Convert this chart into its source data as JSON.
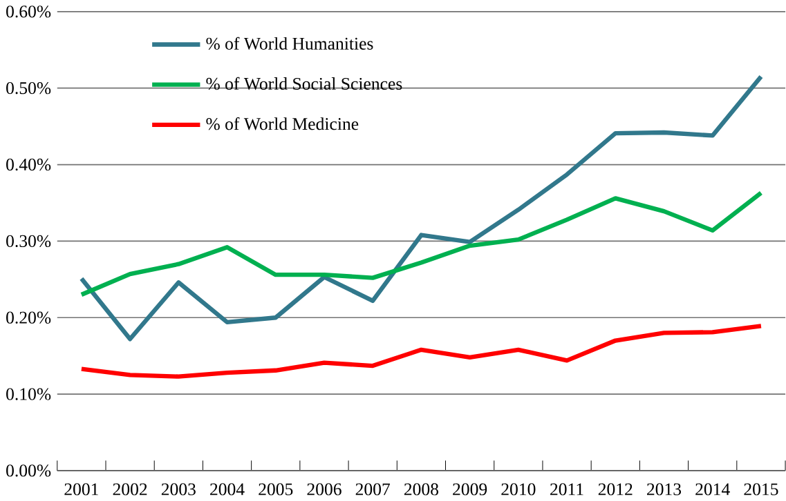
{
  "chart_data": {
    "type": "line",
    "categories": [
      "2001",
      "2002",
      "2003",
      "2004",
      "2005",
      "2006",
      "2007",
      "2008",
      "2009",
      "2010",
      "2011",
      "2012",
      "2013",
      "2014",
      "2015"
    ],
    "series": [
      {
        "name": "% of World Humanities",
        "color": "#31788c",
        "values": [
          0.251,
          0.172,
          0.246,
          0.194,
          0.2,
          0.253,
          0.222,
          0.308,
          0.299,
          0.341,
          0.387,
          0.441,
          0.442,
          0.438,
          0.515
        ]
      },
      {
        "name": "% of World Social Sciences",
        "color": "#00b050",
        "values": [
          0.23,
          0.257,
          0.27,
          0.292,
          0.256,
          0.256,
          0.252,
          0.272,
          0.294,
          0.302,
          0.328,
          0.356,
          0.339,
          0.314,
          0.363
        ]
      },
      {
        "name": "% of World Medicine",
        "color": "#ff0000",
        "values": [
          0.133,
          0.125,
          0.123,
          0.128,
          0.131,
          0.141,
          0.137,
          0.158,
          0.148,
          0.158,
          0.144,
          0.17,
          0.18,
          0.181,
          0.189
        ]
      }
    ],
    "ylim": [
      0,
      0.6
    ],
    "yticks": [
      {
        "value": 0,
        "label": "0.00%"
      },
      {
        "value": 0.1,
        "label": "0.10%"
      },
      {
        "value": 0.2,
        "label": "0.20%"
      },
      {
        "value": 0.3,
        "label": "0.30%"
      },
      {
        "value": 0.4,
        "label": "0.40%"
      },
      {
        "value": 0.5,
        "label": "0.50%"
      },
      {
        "value": 0.6,
        "label": "0.60%"
      }
    ],
    "grid": "y",
    "legend": "top left",
    "marker": "none",
    "line_style": "solid"
  }
}
